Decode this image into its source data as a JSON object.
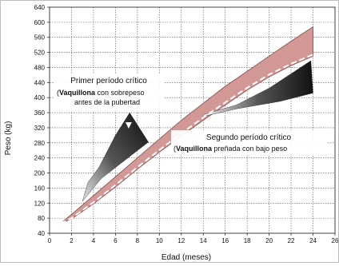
{
  "chart_data": {
    "type": "area",
    "xlabel": "Edad (meses)",
    "ylabel": "Peso (kg)",
    "xlim": [
      0,
      26
    ],
    "ylim": [
      40,
      640
    ],
    "xticks": [
      0,
      2,
      4,
      6,
      8,
      10,
      12,
      14,
      16,
      18,
      20,
      22,
      24,
      26
    ],
    "yticks": [
      40,
      80,
      120,
      160,
      200,
      240,
      280,
      320,
      360,
      400,
      440,
      480,
      520,
      560,
      600,
      640
    ],
    "grid": true,
    "band": {
      "upper": [
        [
          1.0,
          66
        ],
        [
          2,
          90
        ],
        [
          4,
          140
        ],
        [
          6,
          190
        ],
        [
          8,
          240
        ],
        [
          10,
          290
        ],
        [
          12,
          340
        ],
        [
          14,
          385
        ],
        [
          16,
          430
        ],
        [
          18,
          470
        ],
        [
          20,
          510
        ],
        [
          22,
          550
        ],
        [
          24,
          588
        ]
      ],
      "lower": [
        [
          1.0,
          66
        ],
        [
          2,
          78
        ],
        [
          4,
          118
        ],
        [
          6,
          163
        ],
        [
          8,
          210
        ],
        [
          10,
          255
        ],
        [
          12,
          298
        ],
        [
          14,
          340
        ],
        [
          16,
          380
        ],
        [
          18,
          420
        ],
        [
          20,
          455
        ],
        [
          22,
          485
        ],
        [
          24,
          510
        ]
      ]
    },
    "dashed_line": [
      [
        1.0,
        66
      ],
      [
        2,
        80
      ],
      [
        4,
        122
      ],
      [
        6,
        168
      ],
      [
        8,
        215
      ],
      [
        10,
        261
      ],
      [
        12,
        305
      ],
      [
        14,
        347
      ],
      [
        16,
        387
      ],
      [
        18,
        426
      ],
      [
        20,
        461
      ],
      [
        22,
        490
      ],
      [
        24,
        514
      ]
    ],
    "regions": [
      {
        "name": "primer",
        "points": [
          [
            3.0,
            125
          ],
          [
            3.5,
            175
          ],
          [
            4.5,
            215
          ],
          [
            6.0,
            300
          ],
          [
            7.3,
            360
          ],
          [
            9.0,
            282
          ],
          [
            4.7,
            185
          ]
        ]
      },
      {
        "name": "segundo",
        "points": [
          [
            14.0,
            355
          ],
          [
            17.0,
            380
          ],
          [
            20.0,
            425
          ],
          [
            23.8,
            498
          ],
          [
            24.0,
            412
          ],
          [
            21.0,
            390
          ],
          [
            17.0,
            370
          ],
          [
            14.0,
            350
          ]
        ]
      }
    ],
    "annotations": {
      "primer_title": "Primer período crítico",
      "primer_bold": "Vaquillona",
      "primer_line1": " con sobrepeso",
      "primer_line2": "antes de la pubertad",
      "segundo_title": "Segundo período crítico",
      "segundo_bold": "Vaquillona",
      "segundo_line1": " preñada con bajo peso"
    },
    "colors": {
      "band": "#d29895",
      "band_edge": "#8a4a48",
      "region_dark": "#1a1a1a",
      "region_light": "#e0e0e0",
      "dashed": "#ffffff"
    }
  }
}
